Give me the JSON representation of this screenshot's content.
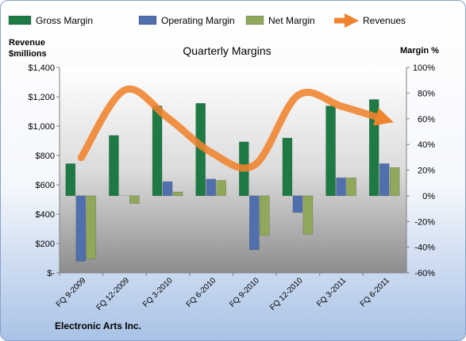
{
  "chart_data": {
    "type": "bar",
    "title": "Quarterly Margins",
    "footer": "Electronic Arts Inc.",
    "left_axis": {
      "label_line1": "Revenue",
      "label_line2": "$millions",
      "ylim": [
        0,
        1400
      ],
      "ticks": [
        0,
        200,
        400,
        600,
        800,
        1000,
        1200,
        1400
      ],
      "tick_labels": [
        "$-",
        "$200",
        "$400",
        "$600",
        "$800",
        "$1,000",
        "$1,200",
        "$1,400"
      ]
    },
    "right_axis": {
      "label": "Margin %",
      "ylim": [
        -60,
        100
      ],
      "ticks": [
        -60,
        -40,
        -20,
        0,
        20,
        40,
        60,
        80,
        100
      ],
      "tick_labels": [
        "-60%",
        "-40%",
        "-20%",
        "0%",
        "20%",
        "40%",
        "60%",
        "80%",
        "100%"
      ]
    },
    "categories": [
      "FQ 9-2009",
      "FQ 12-2009",
      "FQ 3-2010",
      "FQ 6-2010",
      "FQ 9-2010",
      "FQ 12-2010",
      "FQ 3-2011",
      "FQ 6-2011"
    ],
    "series": [
      {
        "name": "Gross Margin",
        "kind": "bar",
        "axis": "right",
        "color": "#1e7a45",
        "values": [
          25,
          47,
          70,
          72,
          42,
          45,
          70,
          75
        ]
      },
      {
        "name": "Operating Margin",
        "kind": "bar",
        "axis": "right",
        "color": "#4f6fad",
        "values": [
          -51,
          0,
          11,
          13,
          -42,
          -13,
          14,
          25
        ]
      },
      {
        "name": "Net Margin",
        "kind": "bar",
        "axis": "right",
        "color": "#8fa85a",
        "values": [
          -49,
          -6,
          3,
          12,
          -31,
          -30,
          14,
          22
        ]
      },
      {
        "name": "Revenues",
        "kind": "line",
        "axis": "left",
        "color": "#f0832e",
        "values": [
          785,
          1245,
          1055,
          820,
          735,
          1210,
          1135,
          1045
        ]
      }
    ],
    "legend_position": "top",
    "grid": false
  }
}
